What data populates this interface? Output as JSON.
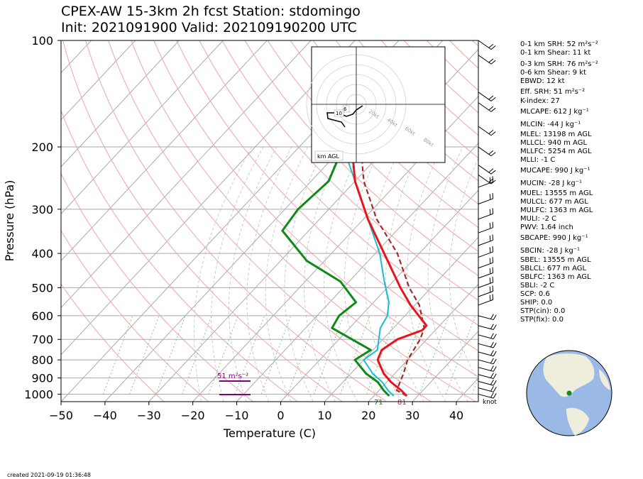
{
  "title_line1": "CPEX-AW 15-3km  2h fcst  Station: stdomingo",
  "title_line2": "Init: 2021091900  Valid: 202109190200 UTC",
  "created": "created 2021-09-19 01:36:48",
  "indices": [
    "0-1 km SRH: 52 m²s⁻²",
    "0-1 km Shear: 11 kt",
    "0-3 km SRH: 76 m²s⁻²",
    "0-6 km Shear: 9 kt",
    "EBWD: 12 kt",
    "Eff. SRH: 51 m²s⁻²",
    "K-index: 27",
    "MLCAPE: 612 J kg⁻¹",
    "MLCIN: -44 J kg⁻¹",
    "MLEL: 13198 m AGL",
    "MLLCL: 940 m AGL",
    "MLLFC: 5254 m AGL",
    "MLLI: -1 C",
    "MUCAPE: 990 J kg⁻¹",
    "MUCIN: -28 J kg⁻¹",
    "MUEL: 13555 m AGL",
    "MULCL: 677 m AGL",
    "MULFC: 1363 m AGL",
    "MULI: -2 C",
    "PWV: 1.64 inch",
    "SBCAPE: 990 J kg⁻¹",
    "SBCIN: -28 J kg⁻¹",
    "SBEL: 13555 m AGL",
    "SBLCL: 677 m AGL",
    "SBLFC: 1363 m AGL",
    "SBLI: -2 C",
    "SCP: 0.6",
    "SHIP: 0.0",
    "STP(cin): 0.0",
    "STP(fix): 0.0"
  ],
  "colors": {
    "temperature": "#e8141b",
    "dewpoint": "#0e8a16",
    "wetbulb": "#17becf",
    "parcel": "#a52a2a",
    "srh": "#800080"
  },
  "chart_data": {
    "type": "line",
    "title": "CPEX-AW 15-3km  2h fcst  Station: stdomingo",
    "xlabel": "Temperature (C)",
    "ylabel": "Pressure (hPa)",
    "xlim": [
      -50,
      45
    ],
    "ylim": [
      1050,
      100
    ],
    "y_scale": "log",
    "x_ticks": [
      "−50",
      "−40",
      "−30",
      "−20",
      "−10",
      "0",
      "10",
      "20",
      "30",
      "40"
    ],
    "y_ticks": [
      "100",
      "200",
      "300",
      "400",
      "500",
      "600",
      "700",
      "800",
      "900",
      "1000"
    ],
    "wind_unit_label": "knot",
    "surface_temp_label": "81",
    "surface_dewpoint_label": "71",
    "srh_label": "51 m²s⁻²",
    "hodograph_label": "km AGL",
    "hodograph_ring_labels": [
      "20kt",
      "40kt",
      "60kt",
      "80kt"
    ],
    "hodograph_height_labels": [
      "6",
      "10"
    ],
    "series": [
      {
        "name": "temperature",
        "points": [
          [
            27.5,
            1012
          ],
          [
            25,
            975
          ],
          [
            21,
            925
          ],
          [
            17.5,
            875
          ],
          [
            13.2,
            800
          ],
          [
            12,
            750
          ],
          [
            13.3,
            700
          ],
          [
            17,
            660
          ],
          [
            17,
            640
          ],
          [
            9,
            560
          ],
          [
            3,
            500
          ],
          [
            -8,
            400
          ],
          [
            -19,
            320
          ],
          [
            -30,
            250
          ],
          [
            -38,
            200
          ],
          [
            -48,
            160
          ]
        ]
      },
      {
        "name": "dewpoint",
        "points": [
          [
            23.5,
            1012
          ],
          [
            21,
            975
          ],
          [
            18,
            925
          ],
          [
            13.5,
            875
          ],
          [
            8,
            800
          ],
          [
            9.5,
            750
          ],
          [
            -4,
            650
          ],
          [
            -5,
            600
          ],
          [
            -4,
            550
          ],
          [
            -12,
            480
          ],
          [
            -24,
            420
          ],
          [
            -36,
            345
          ],
          [
            -37,
            300
          ],
          [
            -36,
            250
          ],
          [
            -40,
            200
          ],
          [
            -48,
            160
          ],
          [
            -60,
            110
          ]
        ]
      },
      {
        "name": "wetbulb",
        "points": [
          [
            24.5,
            1012
          ],
          [
            22,
            975
          ],
          [
            19,
            925
          ],
          [
            15,
            875
          ],
          [
            10,
            800
          ],
          [
            11,
            750
          ],
          [
            7,
            650
          ],
          [
            6,
            600
          ],
          [
            3.5,
            550
          ],
          [
            -2,
            480
          ],
          [
            -9,
            400
          ],
          [
            -19,
            320
          ],
          [
            -30,
            250
          ],
          [
            -40,
            200
          ],
          [
            -49,
            160
          ],
          [
            -55,
            110
          ]
        ]
      },
      {
        "name": "parcel",
        "points": [
          [
            27.5,
            1012
          ],
          [
            24,
            975
          ],
          [
            23,
            925
          ],
          [
            22,
            875
          ],
          [
            20,
            800
          ],
          [
            18.5,
            700
          ],
          [
            17,
            650
          ],
          [
            11,
            560
          ],
          [
            5,
            500
          ],
          [
            -5,
            400
          ],
          [
            -17,
            320
          ],
          [
            -28,
            250
          ],
          [
            -36,
            200
          ],
          [
            -47,
            160
          ],
          [
            -65,
            110
          ]
        ]
      }
    ]
  }
}
